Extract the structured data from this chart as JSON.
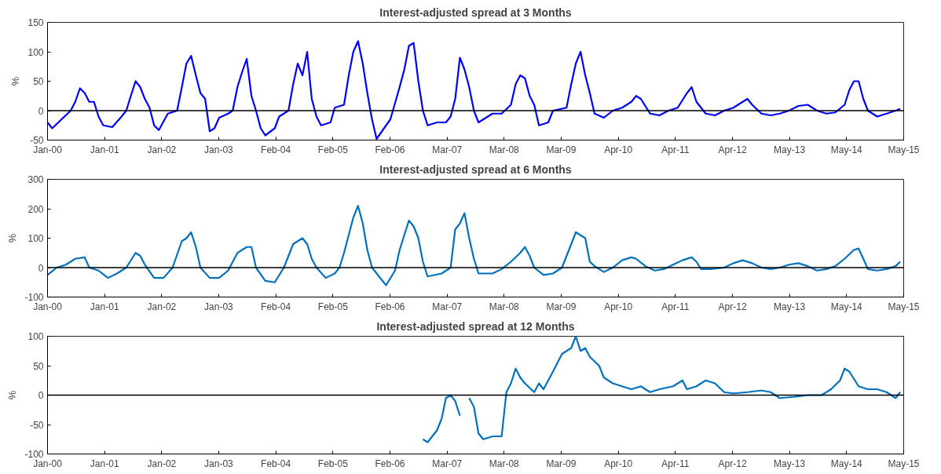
{
  "chart_data": [
    {
      "type": "line",
      "title": "Interest-adjusted spread at 3 Months",
      "ylabel": "%",
      "xlim": [
        "2000-01-01",
        "2015-05-24"
      ],
      "ylim": [
        -50,
        150
      ],
      "yticks": [
        -50,
        0,
        50,
        100,
        150
      ],
      "xticks": [
        {
          "value": "2000-01-01",
          "label": "Jan-00"
        },
        {
          "value": "2001-01-10",
          "label": "Jan-01"
        },
        {
          "value": "2002-01-20",
          "label": "Jan-02"
        },
        {
          "value": "2003-01-29",
          "label": "Jan-03"
        },
        {
          "value": "2004-02-08",
          "label": "Feb-04"
        },
        {
          "value": "2005-02-17",
          "label": "Feb-05"
        },
        {
          "value": "2006-02-27",
          "label": "Feb-06"
        },
        {
          "value": "2007-03-09",
          "label": "Mar-07"
        },
        {
          "value": "2008-03-17",
          "label": "Mar-08"
        },
        {
          "value": "2009-03-27",
          "label": "Mar-09"
        },
        {
          "value": "2010-04-06",
          "label": "Apr-10"
        },
        {
          "value": "2011-04-16",
          "label": "Apr-11"
        },
        {
          "value": "2012-04-25",
          "label": "Apr-12"
        },
        {
          "value": "2013-05-04",
          "label": "May-13"
        },
        {
          "value": "2014-05-14",
          "label": "May-14"
        },
        {
          "value": "2015-05-24",
          "label": "May-15"
        }
      ],
      "grid": false,
      "ref_lines": [
        {
          "axis": "y",
          "value": 0,
          "color": "#000000"
        }
      ],
      "series": [
        {
          "color": "#0000ff",
          "x": [
            "2000-01",
            "2000-02",
            "2000-04",
            "2000-06",
            "2000-07",
            "2000-08",
            "2000-09",
            "2000-10",
            "2000-11",
            "2000-12",
            "2001-01",
            "2001-03",
            "2001-05",
            "2001-06",
            "2001-07",
            "2001-08",
            "2001-09",
            "2001-10",
            "2001-11",
            "2001-12",
            "2002-01",
            "2002-03",
            "2002-05",
            "2002-06",
            "2002-07",
            "2002-08",
            "2002-09",
            "2002-10",
            "2002-11",
            "2002-12",
            "2003-01",
            "2003-02",
            "2003-04",
            "2003-05",
            "2003-06",
            "2003-07",
            "2003-08",
            "2003-09",
            "2003-10",
            "2003-11",
            "2003-12",
            "2004-02",
            "2004-03",
            "2004-05",
            "2004-06",
            "2004-07",
            "2004-08",
            "2004-09",
            "2004-10",
            "2004-11",
            "2004-12",
            "2005-02",
            "2005-03",
            "2005-05",
            "2005-06",
            "2005-07",
            "2005-08",
            "2005-09",
            "2005-10",
            "2005-11",
            "2005-12",
            "2006-02",
            "2006-03",
            "2006-05",
            "2006-06",
            "2006-07",
            "2006-08",
            "2006-09",
            "2006-10",
            "2006-11",
            "2007-01",
            "2007-03",
            "2007-04",
            "2007-05",
            "2007-06",
            "2007-07",
            "2007-08",
            "2007-09",
            "2007-10",
            "2008-01",
            "2008-03",
            "2008-05",
            "2008-06",
            "2008-07",
            "2008-08",
            "2008-09",
            "2008-10",
            "2008-11",
            "2009-01",
            "2009-02",
            "2009-05",
            "2009-06",
            "2009-07",
            "2009-08",
            "2009-09",
            "2009-10",
            "2009-11",
            "2010-01",
            "2010-03",
            "2010-05",
            "2010-07",
            "2010-08",
            "2010-09",
            "2010-11",
            "2011-01",
            "2011-03",
            "2011-05",
            "2011-07",
            "2011-08",
            "2011-09",
            "2011-11",
            "2012-01",
            "2012-03",
            "2012-05",
            "2012-07",
            "2012-08",
            "2012-09",
            "2012-11",
            "2013-01",
            "2013-03",
            "2013-05",
            "2013-07",
            "2013-09",
            "2013-11",
            "2014-01",
            "2014-03",
            "2014-05",
            "2014-06",
            "2014-07",
            "2014-08",
            "2014-09",
            "2014-10",
            "2014-12",
            "2015-02",
            "2015-04",
            "2015-05"
          ],
          "values": [
            -20,
            -30,
            -15,
            0,
            15,
            38,
            30,
            15,
            15,
            -10,
            -25,
            -28,
            -10,
            0,
            25,
            50,
            40,
            20,
            5,
            -25,
            -33,
            -5,
            0,
            40,
            80,
            93,
            60,
            30,
            20,
            -35,
            -30,
            -12,
            -5,
            0,
            40,
            65,
            88,
            25,
            0,
            -30,
            -42,
            -30,
            -10,
            0,
            45,
            80,
            60,
            100,
            20,
            -10,
            -25,
            -20,
            5,
            10,
            60,
            100,
            118,
            80,
            30,
            -15,
            -48,
            -25,
            -15,
            40,
            70,
            110,
            115,
            50,
            0,
            -25,
            -20,
            -20,
            -10,
            20,
            90,
            70,
            40,
            0,
            -20,
            -5,
            -5,
            10,
            45,
            60,
            55,
            25,
            10,
            -25,
            -20,
            0,
            5,
            45,
            80,
            100,
            60,
            30,
            -5,
            -12,
            0,
            5,
            15,
            25,
            20,
            -5,
            -8,
            0,
            5,
            30,
            40,
            15,
            -5,
            -8,
            0,
            5,
            15,
            20,
            10,
            -5,
            -8,
            -5,
            0,
            8,
            10,
            0,
            -5,
            -3,
            10,
            35,
            50,
            50,
            20,
            0,
            -10,
            -5,
            0,
            3
          ]
        }
      ]
    },
    {
      "type": "line",
      "title": "Interest-adjusted spread at 6 Months",
      "ylabel": "%",
      "xlim": [
        "2000-01-01",
        "2015-05-24"
      ],
      "ylim": [
        -100,
        300
      ],
      "yticks": [
        -100,
        0,
        100,
        200,
        300
      ],
      "xticks": [
        {
          "value": "2000-01-01",
          "label": "Jan-00"
        },
        {
          "value": "2001-01-10",
          "label": "Jan-01"
        },
        {
          "value": "2002-01-20",
          "label": "Jan-02"
        },
        {
          "value": "2003-01-29",
          "label": "Jan-03"
        },
        {
          "value": "2004-02-08",
          "label": "Feb-04"
        },
        {
          "value": "2005-02-17",
          "label": "Feb-05"
        },
        {
          "value": "2006-02-27",
          "label": "Feb-06"
        },
        {
          "value": "2007-03-09",
          "label": "Mar-07"
        },
        {
          "value": "2008-03-17",
          "label": "Mar-08"
        },
        {
          "value": "2009-03-27",
          "label": "Mar-09"
        },
        {
          "value": "2010-04-06",
          "label": "Apr-10"
        },
        {
          "value": "2011-04-16",
          "label": "Apr-11"
        },
        {
          "value": "2012-04-25",
          "label": "Apr-12"
        },
        {
          "value": "2013-05-04",
          "label": "May-13"
        },
        {
          "value": "2014-05-14",
          "label": "May-14"
        },
        {
          "value": "2015-05-24",
          "label": "May-15"
        }
      ],
      "grid": false,
      "ref_lines": [
        {
          "axis": "y",
          "value": 0,
          "color": "#000000"
        }
      ],
      "series": [
        {
          "color": "#0072bd",
          "x": [
            "2000-01",
            "2000-03",
            "2000-05",
            "2000-07",
            "2000-09",
            "2000-10",
            "2000-12",
            "2001-02",
            "2001-04",
            "2001-06",
            "2001-08",
            "2001-09",
            "2001-10",
            "2001-12",
            "2002-02",
            "2002-04",
            "2002-06",
            "2002-07",
            "2002-08",
            "2002-09",
            "2002-10",
            "2002-12",
            "2003-02",
            "2003-04",
            "2003-06",
            "2003-08",
            "2003-09",
            "2003-10",
            "2003-12",
            "2004-02",
            "2004-04",
            "2004-06",
            "2004-08",
            "2004-09",
            "2004-10",
            "2004-11",
            "2005-01",
            "2005-03",
            "2005-04",
            "2005-05",
            "2005-07",
            "2005-08",
            "2005-09",
            "2005-10",
            "2005-11",
            "2006-01",
            "2006-02",
            "2006-04",
            "2006-05",
            "2006-07",
            "2006-08",
            "2006-09",
            "2006-10",
            "2006-11",
            "2007-02",
            "2007-04",
            "2007-05",
            "2007-06",
            "2007-07",
            "2007-08",
            "2007-09",
            "2007-10",
            "2008-01",
            "2008-03",
            "2008-05",
            "2008-07",
            "2008-08",
            "2008-09",
            "2008-10",
            "2008-12",
            "2009-02",
            "2009-04",
            "2009-06",
            "2009-07",
            "2009-08",
            "2009-09",
            "2009-10",
            "2009-11",
            "2010-01",
            "2010-03",
            "2010-05",
            "2010-07",
            "2010-08",
            "2010-10",
            "2010-12",
            "2011-02",
            "2011-04",
            "2011-06",
            "2011-08",
            "2011-09",
            "2011-10",
            "2011-12",
            "2012-03",
            "2012-05",
            "2012-07",
            "2012-09",
            "2012-11",
            "2013-01",
            "2013-03",
            "2013-05",
            "2013-07",
            "2013-09",
            "2013-11",
            "2014-01",
            "2014-03",
            "2014-05",
            "2014-07",
            "2014-08",
            "2014-09",
            "2014-10",
            "2014-12",
            "2015-02",
            "2015-04",
            "2015-05"
          ],
          "values": [
            -25,
            0,
            10,
            30,
            35,
            0,
            -10,
            -35,
            -20,
            0,
            50,
            40,
            10,
            -35,
            -35,
            0,
            90,
            100,
            120,
            70,
            0,
            -35,
            -35,
            -10,
            50,
            70,
            70,
            0,
            -45,
            -50,
            0,
            80,
            100,
            80,
            30,
            0,
            -35,
            -20,
            0,
            50,
            170,
            210,
            150,
            60,
            0,
            -40,
            -60,
            -10,
            60,
            160,
            140,
            100,
            20,
            -30,
            -20,
            0,
            130,
            150,
            185,
            100,
            30,
            -20,
            -20,
            -5,
            20,
            50,
            70,
            40,
            0,
            -25,
            -20,
            0,
            80,
            120,
            110,
            100,
            20,
            5,
            -15,
            0,
            25,
            35,
            30,
            5,
            -10,
            -5,
            10,
            25,
            35,
            20,
            -5,
            -5,
            0,
            15,
            25,
            15,
            0,
            -5,
            0,
            10,
            15,
            5,
            -10,
            -5,
            5,
            30,
            60,
            65,
            30,
            -5,
            -10,
            -5,
            5,
            20
          ]
        }
      ]
    },
    {
      "type": "line",
      "title": "Interest-adjusted spread at 12 Months",
      "ylabel": "%",
      "xlim": [
        "2000-01-01",
        "2015-05-24"
      ],
      "ylim": [
        -100,
        100
      ],
      "yticks": [
        -100,
        -50,
        0,
        50,
        100
      ],
      "xticks": [
        {
          "value": "2000-01-01",
          "label": "Jan-00"
        },
        {
          "value": "2001-01-10",
          "label": "Jan-01"
        },
        {
          "value": "2002-01-20",
          "label": "Jan-02"
        },
        {
          "value": "2003-01-29",
          "label": "Jan-03"
        },
        {
          "value": "2004-02-08",
          "label": "Feb-04"
        },
        {
          "value": "2005-02-17",
          "label": "Feb-05"
        },
        {
          "value": "2006-02-27",
          "label": "Feb-06"
        },
        {
          "value": "2007-03-09",
          "label": "Mar-07"
        },
        {
          "value": "2008-03-17",
          "label": "Mar-08"
        },
        {
          "value": "2009-03-27",
          "label": "Mar-09"
        },
        {
          "value": "2010-04-06",
          "label": "Apr-10"
        },
        {
          "value": "2011-04-16",
          "label": "Apr-11"
        },
        {
          "value": "2012-04-25",
          "label": "Apr-12"
        },
        {
          "value": "2013-05-04",
          "label": "May-13"
        },
        {
          "value": "2014-05-14",
          "label": "May-14"
        },
        {
          "value": "2015-05-24",
          "label": "May-15"
        }
      ],
      "grid": false,
      "ref_lines": [
        {
          "axis": "y",
          "value": 0,
          "color": "#000000"
        }
      ],
      "series": [
        {
          "color": "#0072bd",
          "x": [
            "2006-10",
            "2006-11",
            "2006-12",
            "2007-01",
            "2007-02",
            "2007-03",
            "2007-04",
            "2007-05",
            "2007-06",
            "2007-07",
            "2007-08",
            "2007-09",
            "2007-10",
            "2007-11",
            "2008-01",
            "2008-03",
            "2008-04",
            "2008-05",
            "2008-06",
            "2008-07",
            "2008-08",
            "2008-10",
            "2008-11",
            "2008-12",
            "2009-02",
            "2009-04",
            "2009-06",
            "2009-07",
            "2009-08",
            "2009-09",
            "2009-10",
            "2009-12",
            "2010-01",
            "2010-03",
            "2010-05",
            "2010-07",
            "2010-09",
            "2010-11",
            "2011-01",
            "2011-04",
            "2011-06",
            "2011-07",
            "2011-09",
            "2011-11",
            "2012-01",
            "2012-03",
            "2012-05",
            "2012-08",
            "2012-11",
            "2013-01",
            "2013-03",
            "2013-06",
            "2013-09",
            "2013-12",
            "2014-02",
            "2014-04",
            "2014-05",
            "2014-06",
            "2014-08",
            "2014-10",
            "2014-12",
            "2015-02",
            "2015-04",
            "2015-05"
          ],
          "values": [
            -75,
            -80,
            -70,
            -60,
            -40,
            -5,
            0,
            -10,
            -35,
            null,
            -5,
            -20,
            -65,
            -75,
            -70,
            -70,
            5,
            20,
            45,
            30,
            20,
            5,
            20,
            10,
            40,
            70,
            80,
            100,
            75,
            80,
            65,
            50,
            30,
            20,
            15,
            10,
            15,
            5,
            10,
            15,
            25,
            10,
            15,
            25,
            20,
            5,
            3,
            5,
            8,
            5,
            -5,
            -3,
            0,
            0,
            10,
            25,
            45,
            40,
            15,
            10,
            10,
            5,
            -5,
            5
          ]
        }
      ]
    }
  ]
}
